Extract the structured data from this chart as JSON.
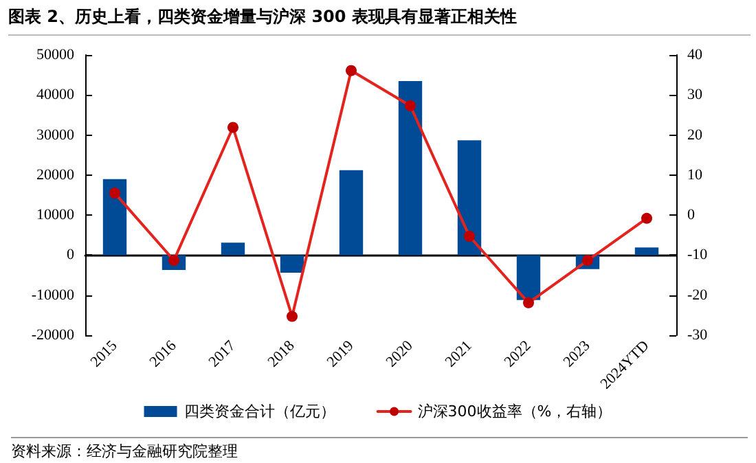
{
  "chart_data": {
    "type": "bar",
    "title": "图表 2、历史上看，四类资金增量与沪深 300 表现具有显著正相关性",
    "categories": [
      "2015",
      "2016",
      "2017",
      "2018",
      "2019",
      "2020",
      "2021",
      "2022",
      "2023",
      "2024YTD"
    ],
    "series": [
      {
        "name": "四类资金合计（亿元）",
        "color": "#004a96",
        "values": [
          19000,
          -3700,
          3100,
          -4400,
          21200,
          43500,
          28700,
          -11200,
          -3500,
          1900
        ]
      },
      {
        "name": "沪深300收益率（%，右轴）",
        "type": "line",
        "axis": "y2",
        "color": "#e3231e",
        "marker": "circle",
        "values": [
          5.5,
          -11.3,
          21.9,
          -25.3,
          36.1,
          27.3,
          -5.3,
          -21.9,
          -11.3,
          -0.8
        ]
      }
    ],
    "ylim": [
      -20000,
      50000
    ],
    "yticks": [
      -20000,
      -10000,
      0,
      10000,
      20000,
      30000,
      40000,
      50000
    ],
    "y2lim": [
      -30,
      40
    ],
    "y2ticks": [
      -30,
      -20,
      -10,
      0,
      10,
      20,
      30,
      40
    ],
    "legend": "bottom",
    "annotations": [
      "资料来源：经济与金融研究院整理"
    ]
  }
}
